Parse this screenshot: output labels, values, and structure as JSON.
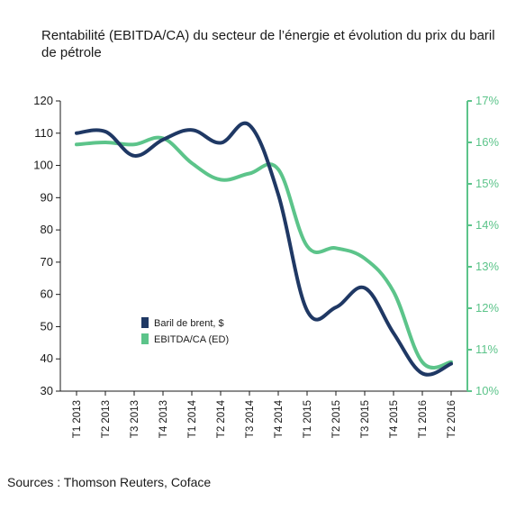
{
  "title": "Rentabilité (EBITDA/CA) du secteur de l’énergie et évolution du prix du baril de pétrole",
  "source": "Sources : Thomson Reuters, Coface",
  "colors": {
    "brent": "#1f3864",
    "ebitda": "#5cc48a",
    "axis": "#1a1a1a"
  },
  "chart_data": {
    "type": "line",
    "title": "Rentabilité (EBITDA/CA) du secteur de l’énergie et évolution du prix du baril de pétrole",
    "categories": [
      "T1 2013",
      "T2 2013",
      "T3 2013",
      "T4 2013",
      "T1 2014",
      "T2 2014",
      "T3 2014",
      "T4 2014",
      "T1 2015",
      "T2 2015",
      "T3 2015",
      "T4 2015",
      "T1 2016",
      "T2 2016"
    ],
    "y_left": {
      "ticks": [
        "120",
        "110",
        "100",
        "90",
        "80",
        "70",
        "60",
        "50",
        "40",
        "30"
      ],
      "ylim": [
        30,
        120
      ]
    },
    "y_right": {
      "ticks": [
        "17%",
        "16%",
        "15%",
        "14%",
        "13%",
        "12%",
        "11%",
        "10%"
      ],
      "ylim": [
        10,
        17
      ]
    },
    "legend_position": "center-left",
    "grid": false,
    "series": [
      {
        "name": "Baril de brent, $",
        "axis": "left",
        "values": [
          110,
          110.5,
          103,
          108,
          111,
          107,
          112.5,
          91,
          55,
          56,
          62,
          48,
          35.5,
          38.5
        ]
      },
      {
        "name": "EBITDA/CA (ED)",
        "axis": "right",
        "values": [
          15.95,
          16.0,
          15.95,
          16.1,
          15.5,
          15.1,
          15.25,
          15.35,
          13.5,
          13.45,
          13.2,
          12.4,
          10.7,
          10.7
        ]
      }
    ]
  }
}
